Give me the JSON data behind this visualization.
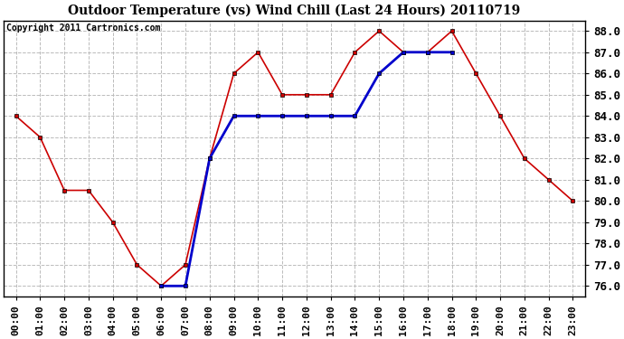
{
  "title": "Outdoor Temperature (vs) Wind Chill (Last 24 Hours) 20110719",
  "copyright": "Copyright 2011 Cartronics.com",
  "x_labels": [
    "00:00",
    "01:00",
    "02:00",
    "03:00",
    "04:00",
    "05:00",
    "06:00",
    "07:00",
    "08:00",
    "09:00",
    "10:00",
    "11:00",
    "12:00",
    "13:00",
    "14:00",
    "15:00",
    "16:00",
    "17:00",
    "18:00",
    "19:00",
    "20:00",
    "21:00",
    "22:00",
    "23:00"
  ],
  "temp_red": [
    84.0,
    83.0,
    80.5,
    80.5,
    79.0,
    77.0,
    76.0,
    77.0,
    82.0,
    86.0,
    87.0,
    85.0,
    85.0,
    85.0,
    87.0,
    88.0,
    87.0,
    87.0,
    88.0,
    86.0,
    84.0,
    82.0,
    81.0,
    80.0
  ],
  "wind_chill_blue": [
    null,
    null,
    null,
    null,
    null,
    null,
    76.0,
    76.0,
    82.0,
    84.0,
    84.0,
    84.0,
    84.0,
    84.0,
    84.0,
    86.0,
    87.0,
    87.0,
    87.0,
    null,
    null,
    null,
    null,
    null
  ],
  "ylim_min": 75.5,
  "ylim_max": 88.5,
  "yticks": [
    76.0,
    77.0,
    78.0,
    79.0,
    80.0,
    81.0,
    82.0,
    83.0,
    84.0,
    85.0,
    86.0,
    87.0,
    88.0
  ],
  "red_color": "#cc0000",
  "blue_color": "#0000cc",
  "bg_color": "#ffffff",
  "plot_bg_color": "#ffffff",
  "grid_color": "#bbbbbb",
  "title_fontsize": 10,
  "copyright_fontsize": 7,
  "tick_label_fontsize": 8,
  "y_tick_label_fontsize": 9
}
